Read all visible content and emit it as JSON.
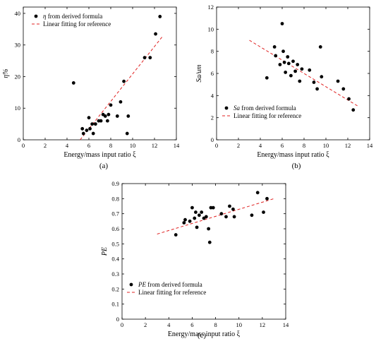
{
  "chart_data": [
    {
      "panel_label": "(a)",
      "type": "scatter",
      "xlabel": "Energy/mass input ratio ξ",
      "ylabel": "η%",
      "xlim": [
        0,
        14
      ],
      "ylim": [
        0,
        42
      ],
      "x_ticks": [
        0,
        2,
        4,
        6,
        8,
        10,
        12,
        14
      ],
      "y_ticks": [
        0,
        10,
        20,
        30,
        40
      ],
      "legend_position": "top-left",
      "series": [
        {
          "kind": "points",
          "legend": {
            "symbol": "η",
            "text": " from derived formula"
          },
          "points": [
            [
              4.6,
              18
            ],
            [
              5.4,
              3.5
            ],
            [
              5.5,
              2
            ],
            [
              5.8,
              3
            ],
            [
              6.0,
              7
            ],
            [
              6.1,
              3.5
            ],
            [
              6.3,
              5
            ],
            [
              6.4,
              2
            ],
            [
              6.6,
              5
            ],
            [
              6.9,
              6
            ],
            [
              7.1,
              6
            ],
            [
              7.3,
              8
            ],
            [
              7.5,
              7.5
            ],
            [
              7.7,
              6
            ],
            [
              7.8,
              8
            ],
            [
              8.0,
              11
            ],
            [
              8.6,
              7.5
            ],
            [
              8.9,
              12
            ],
            [
              9.2,
              18.5
            ],
            [
              9.5,
              2
            ],
            [
              9.6,
              7.5
            ],
            [
              11.1,
              26
            ],
            [
              11.6,
              26
            ],
            [
              12.1,
              33.5
            ],
            [
              12.5,
              39
            ]
          ]
        },
        {
          "kind": "fit-line",
          "color": "#e02020",
          "legend": {
            "symbol": "",
            "text": "Linear fitting for reference"
          },
          "points": [
            [
              5.2,
              0
            ],
            [
              12.8,
              33
            ]
          ]
        }
      ]
    },
    {
      "panel_label": "(b)",
      "type": "scatter",
      "xlabel": "Energy/mass input ratio ξ",
      "ylabel": "Sa/um",
      "xlim": [
        0,
        14
      ],
      "ylim": [
        0,
        12
      ],
      "x_ticks": [
        0,
        2,
        4,
        6,
        8,
        10,
        12,
        14
      ],
      "y_ticks": [
        0,
        2,
        4,
        6,
        8,
        10,
        12
      ],
      "legend_position": "bottom-left",
      "series": [
        {
          "kind": "points",
          "legend": {
            "symbol": "Sa",
            "text": " from derived formula"
          },
          "points": [
            [
              4.6,
              5.6
            ],
            [
              5.3,
              8.4
            ],
            [
              5.4,
              7.6
            ],
            [
              5.8,
              6.8
            ],
            [
              6.0,
              10.5
            ],
            [
              6.1,
              8.0
            ],
            [
              6.2,
              7.0
            ],
            [
              6.3,
              6.1
            ],
            [
              6.5,
              7.5
            ],
            [
              6.6,
              6.9
            ],
            [
              6.8,
              5.8
            ],
            [
              7.0,
              7.1
            ],
            [
              7.2,
              6.2
            ],
            [
              7.4,
              6.8
            ],
            [
              7.6,
              5.3
            ],
            [
              7.8,
              6.4
            ],
            [
              8.5,
              6.3
            ],
            [
              8.9,
              5.2
            ],
            [
              9.2,
              4.6
            ],
            [
              9.5,
              8.4
            ],
            [
              9.6,
              5.7
            ],
            [
              11.1,
              5.3
            ],
            [
              11.6,
              4.6
            ],
            [
              12.1,
              3.7
            ],
            [
              12.5,
              2.7
            ]
          ]
        },
        {
          "kind": "fit-line",
          "color": "#e02020",
          "legend": {
            "symbol": "",
            "text": "Linear fitting for reference"
          },
          "points": [
            [
              3.0,
              9.0
            ],
            [
              13.0,
              3.0
            ]
          ]
        }
      ]
    },
    {
      "panel_label": "(c)",
      "type": "scatter",
      "xlabel": "Energy/mass input ratio ξ",
      "ylabel": "PE",
      "xlim": [
        0,
        14
      ],
      "ylim": [
        0,
        0.9
      ],
      "x_ticks": [
        0,
        2,
        4,
        6,
        8,
        10,
        12,
        14
      ],
      "y_ticks": [
        0,
        0.1,
        0.2,
        0.3,
        0.4,
        0.5,
        0.6,
        0.7,
        0.8,
        0.9
      ],
      "legend_position": "bottom-left",
      "series": [
        {
          "kind": "points",
          "legend": {
            "symbol": "PE",
            "text": " from derived formula"
          },
          "points": [
            [
              4.6,
              0.56
            ],
            [
              5.3,
              0.64
            ],
            [
              5.4,
              0.66
            ],
            [
              5.8,
              0.65
            ],
            [
              6.0,
              0.74
            ],
            [
              6.2,
              0.67
            ],
            [
              6.3,
              0.71
            ],
            [
              6.4,
              0.61
            ],
            [
              6.6,
              0.69
            ],
            [
              6.8,
              0.71
            ],
            [
              7.0,
              0.67
            ],
            [
              7.2,
              0.68
            ],
            [
              7.4,
              0.6
            ],
            [
              7.5,
              0.51
            ],
            [
              7.6,
              0.74
            ],
            [
              7.8,
              0.74
            ],
            [
              8.5,
              0.7
            ],
            [
              8.9,
              0.68
            ],
            [
              9.2,
              0.75
            ],
            [
              9.5,
              0.73
            ],
            [
              9.6,
              0.68
            ],
            [
              11.1,
              0.69
            ],
            [
              11.6,
              0.84
            ],
            [
              12.1,
              0.71
            ],
            [
              12.4,
              0.8
            ]
          ]
        },
        {
          "kind": "fit-line",
          "color": "#e02020",
          "legend": {
            "symbol": "",
            "text": "Linear fitting for reference"
          },
          "points": [
            [
              3.0,
              0.565
            ],
            [
              13.0,
              0.8
            ]
          ]
        }
      ]
    }
  ]
}
